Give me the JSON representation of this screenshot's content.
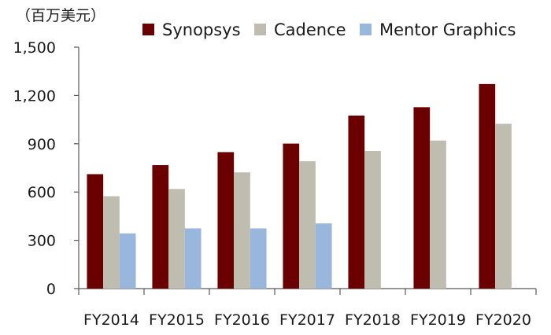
{
  "chart_data": {
    "type": "bar",
    "unit_label": "（百万美元）",
    "categories": [
      "FY2014",
      "FY2015",
      "FY2016",
      "FY2017",
      "FY2018",
      "FY2019",
      "FY2020"
    ],
    "series": [
      {
        "name": "Synopsys",
        "color": "#6b0000",
        "values": [
          711,
          767,
          848,
          901,
          1075,
          1127,
          1271
        ]
      },
      {
        "name": "Cadence",
        "color": "#bfbdaf",
        "values": [
          574,
          619,
          722,
          791,
          855,
          920,
          1024
        ]
      },
      {
        "name": "Mentor Graphics",
        "color": "#99b6dc",
        "values": [
          343,
          374,
          374,
          405,
          null,
          null,
          null
        ]
      }
    ],
    "y_ticks": [
      "0",
      "300",
      "600",
      "900",
      "1,200",
      "1,500"
    ],
    "ylim": [
      0,
      1500
    ],
    "legend_position": "top-right",
    "grid": false
  }
}
